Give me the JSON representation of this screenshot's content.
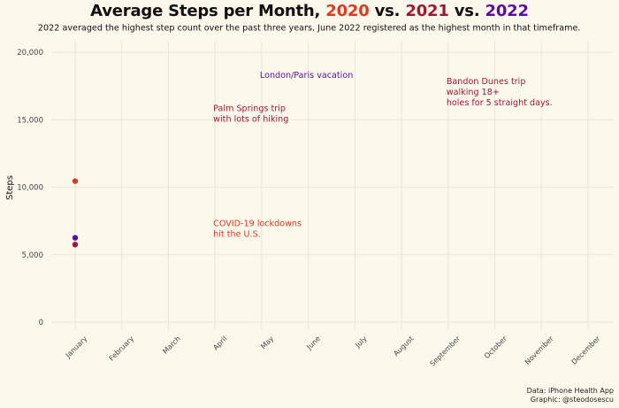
{
  "title": {
    "prefix": "Average Steps per Month, ",
    "y2020": "2020",
    "vs1": " vs. ",
    "y2021": "2021",
    "vs2": " vs. ",
    "y2022": "2022"
  },
  "subtitle": "2022 averaged the highest step count over the past three years. June 2022 registered as the highest month in that timeframe.",
  "caption": {
    "line1": "Data: iPhone Health App",
    "line2": "Graphic: @steodosescu"
  },
  "colors": {
    "background": "#fdf8ec",
    "grid": "#e9e5da",
    "c2020": "#dc3a22",
    "c2021": "#9b1b30",
    "c2022": "#5a0fa0",
    "axis_text": "#444444"
  },
  "chart_data": {
    "type": "scatter",
    "title": "Average Steps per Month, 2020 vs. 2021 vs. 2022",
    "ylabel": "Steps",
    "xlabel": "",
    "categories": [
      "January",
      "February",
      "March",
      "April",
      "May",
      "June",
      "July",
      "August",
      "September",
      "October",
      "November",
      "December"
    ],
    "ylim": [
      0,
      20000
    ],
    "yticks": [
      0,
      5000,
      10000,
      15000,
      20000
    ],
    "ytick_labels": [
      "0",
      "5,000",
      "10,000",
      "15,000",
      "20,000"
    ],
    "grid": true,
    "series": [
      {
        "name": "2020",
        "color": "#dc3a22",
        "values": [
          10450,
          null,
          null,
          null,
          null,
          null,
          null,
          null,
          null,
          null,
          null,
          null
        ]
      },
      {
        "name": "2021",
        "color": "#9b1b30",
        "values": [
          5750,
          null,
          null,
          null,
          null,
          null,
          null,
          null,
          null,
          null,
          null,
          null
        ]
      },
      {
        "name": "2022",
        "color": "#5a0fa0",
        "values": [
          6250,
          null,
          null,
          null,
          null,
          null,
          null,
          null,
          null,
          null,
          null,
          null
        ]
      }
    ],
    "annotations": [
      {
        "text": [
          "COVID-19 lockdowns",
          "hit the U.S."
        ],
        "x": "April",
        "y": 7100,
        "color": "#dc3a22"
      },
      {
        "text": [
          "Palm Springs trip",
          "with lots of hiking"
        ],
        "x": "April",
        "y": 15650,
        "color": "#9b1b30"
      },
      {
        "text": [
          "London/Paris vacation"
        ],
        "x": "May",
        "y": 18100,
        "color": "#5a0fa0"
      },
      {
        "text": [
          "Bandon Dunes trip",
          "walking 18+",
          "holes for 5 straight days."
        ],
        "x": "September",
        "y": 17650,
        "color": "#9b1b30"
      }
    ]
  }
}
